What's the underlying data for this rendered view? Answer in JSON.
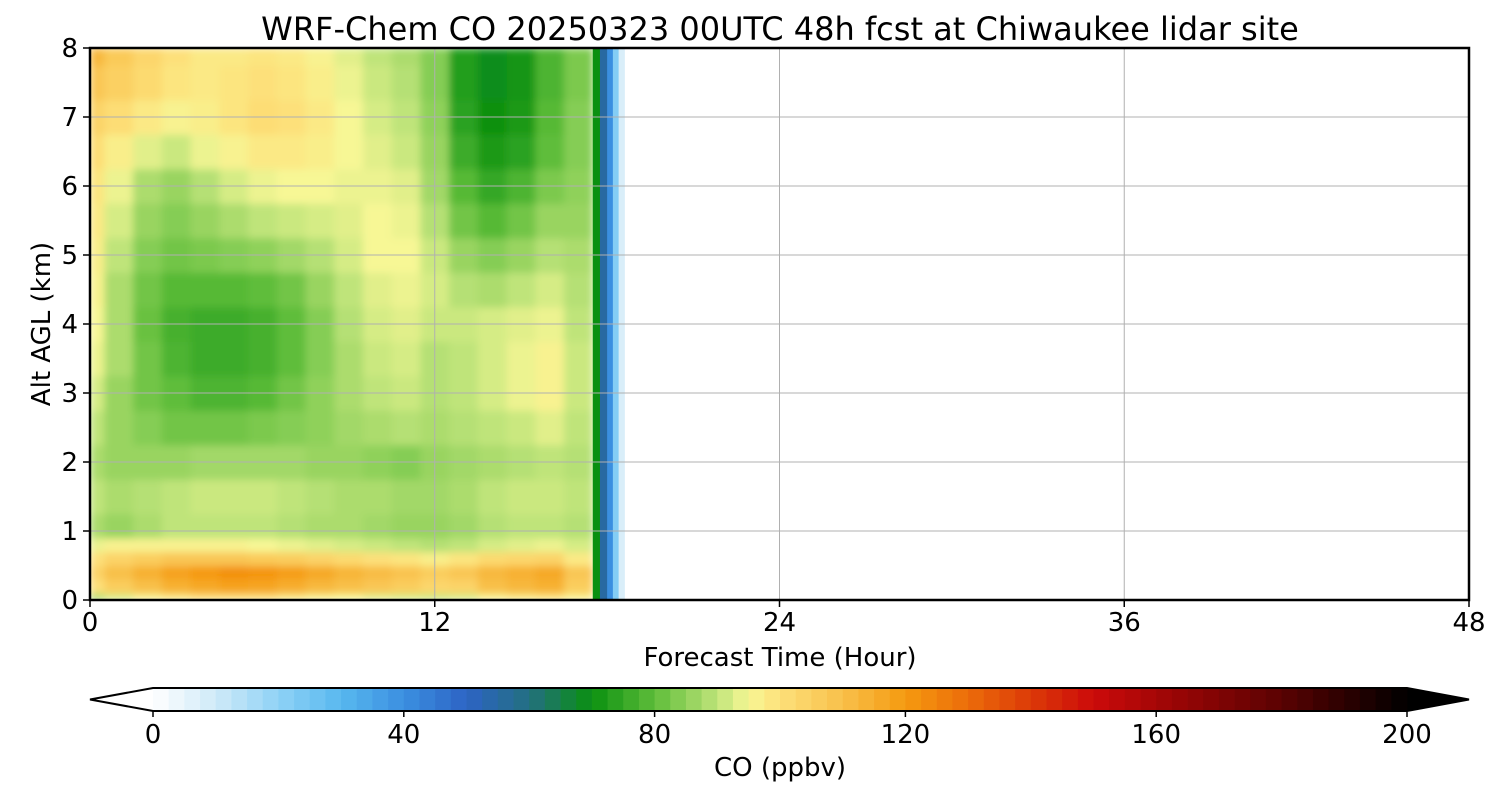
{
  "chart_data": {
    "type": "heatmap",
    "title": "WRF-Chem CO  20250323 00UTC 48h fcst at Chiwaukee lidar site",
    "xlabel": "Forecast Time (Hour)",
    "ylabel": "Alt AGL (km)",
    "xlim": [
      0,
      48
    ],
    "ylim": [
      0,
      8
    ],
    "xticks": [
      0,
      12,
      24,
      36,
      48
    ],
    "yticks": [
      0,
      1,
      2,
      3,
      4,
      5,
      6,
      7,
      8
    ],
    "grid": true,
    "x": [
      0,
      1,
      2,
      3,
      4,
      5,
      6,
      7,
      8,
      9,
      10,
      11,
      12,
      13,
      14,
      15,
      16,
      17
    ],
    "y": [
      0,
      0.2,
      0.4,
      0.6,
      0.8,
      1,
      1.5,
      2,
      2.5,
      3,
      3.5,
      4,
      4.5,
      5,
      5.5,
      6,
      6.5,
      7,
      7.5,
      8
    ],
    "z": [
      [
        88,
        92,
        96,
        98,
        100,
        100,
        100,
        98,
        96,
        95,
        93,
        92,
        91,
        92,
        96,
        98,
        99,
        96
      ],
      [
        100,
        106,
        110,
        114,
        116,
        118,
        117,
        115,
        112,
        110,
        108,
        106,
        103,
        104,
        110,
        112,
        114,
        106
      ],
      [
        104,
        110,
        114,
        118,
        120,
        122,
        121,
        119,
        116,
        113,
        111,
        109,
        106,
        108,
        112,
        114,
        116,
        108
      ],
      [
        100,
        104,
        106,
        108,
        108,
        108,
        107,
        106,
        104,
        102,
        100,
        99,
        97,
        99,
        102,
        103,
        104,
        98
      ],
      [
        94,
        96,
        96,
        96,
        96,
        96,
        95,
        94,
        93,
        92,
        91,
        90,
        89,
        90,
        92,
        93,
        94,
        92
      ],
      [
        88,
        86,
        88,
        90,
        90,
        90,
        90,
        89,
        88,
        88,
        87,
        86,
        86,
        87,
        89,
        90,
        90,
        89
      ],
      [
        90,
        88,
        89,
        90,
        91,
        91,
        91,
        90,
        89,
        88,
        88,
        87,
        87,
        88,
        90,
        91,
        91,
        90
      ],
      [
        88,
        86,
        86,
        86,
        87,
        87,
        87,
        87,
        86,
        86,
        85,
        84,
        86,
        87,
        88,
        89,
        90,
        89
      ],
      [
        90,
        86,
        84,
        82,
        82,
        82,
        83,
        84,
        85,
        87,
        88,
        89,
        88,
        89,
        90,
        91,
        93,
        90
      ],
      [
        92,
        86,
        82,
        80,
        78,
        78,
        79,
        82,
        85,
        88,
        90,
        91,
        89,
        90,
        92,
        94,
        96,
        91
      ],
      [
        94,
        88,
        82,
        78,
        76,
        76,
        77,
        80,
        84,
        88,
        91,
        92,
        89,
        90,
        92,
        94,
        96,
        91
      ],
      [
        95,
        88,
        81,
        77,
        76,
        76,
        77,
        80,
        84,
        89,
        92,
        93,
        91,
        91,
        92,
        93,
        94,
        90
      ],
      [
        96,
        88,
        82,
        79,
        79,
        79,
        80,
        82,
        86,
        90,
        93,
        94,
        92,
        89,
        88,
        90,
        92,
        89
      ],
      [
        97,
        90,
        84,
        82,
        83,
        84,
        85,
        87,
        89,
        92,
        95,
        95,
        91,
        86,
        84,
        86,
        89,
        88
      ],
      [
        98,
        92,
        86,
        84,
        86,
        88,
        90,
        91,
        92,
        93,
        95,
        94,
        89,
        82,
        79,
        82,
        86,
        86
      ],
      [
        99,
        94,
        88,
        86,
        89,
        92,
        94,
        95,
        95,
        94,
        94,
        93,
        87,
        79,
        75,
        78,
        83,
        85
      ],
      [
        101,
        97,
        93,
        91,
        94,
        96,
        98,
        98,
        97,
        95,
        93,
        91,
        86,
        76,
        72,
        74,
        80,
        84
      ],
      [
        104,
        101,
        98,
        96,
        97,
        99,
        101,
        100,
        98,
        95,
        92,
        90,
        85,
        74,
        70,
        72,
        79,
        84
      ],
      [
        108,
        105,
        102,
        99,
        98,
        99,
        100,
        99,
        97,
        94,
        91,
        89,
        84,
        73,
        69,
        71,
        78,
        83
      ],
      [
        112,
        107,
        103,
        100,
        98,
        98,
        99,
        98,
        96,
        93,
        90,
        88,
        84,
        73,
        69,
        71,
        78,
        83
      ]
    ],
    "colorbar": {
      "label": "CO  (ppbv)",
      "ticks": [
        0,
        40,
        80,
        120,
        160,
        200
      ],
      "vmin": 0,
      "vmax": 200,
      "extend": "both",
      "stops": [
        [
          0,
          "#ffffff"
        ],
        [
          10,
          "#cfeaf8"
        ],
        [
          20,
          "#8fd2f6"
        ],
        [
          30,
          "#58b8ef"
        ],
        [
          40,
          "#3b8fe0"
        ],
        [
          50,
          "#2d63c4"
        ],
        [
          60,
          "#236f80"
        ],
        [
          70,
          "#0a9010"
        ],
        [
          80,
          "#5fbd3a"
        ],
        [
          90,
          "#bfe47a"
        ],
        [
          95,
          "#f7f795"
        ],
        [
          100,
          "#fde07a"
        ],
        [
          110,
          "#f8c04a"
        ],
        [
          120,
          "#f59a10"
        ],
        [
          130,
          "#ec6c0a"
        ],
        [
          140,
          "#dc3a08"
        ],
        [
          150,
          "#cc0a0a"
        ],
        [
          160,
          "#a50606"
        ],
        [
          170,
          "#800404"
        ],
        [
          180,
          "#5a0202"
        ],
        [
          190,
          "#2c0101"
        ],
        [
          200,
          "#000000"
        ]
      ],
      "below_color": "#ffffff",
      "above_color": "#000000"
    }
  }
}
